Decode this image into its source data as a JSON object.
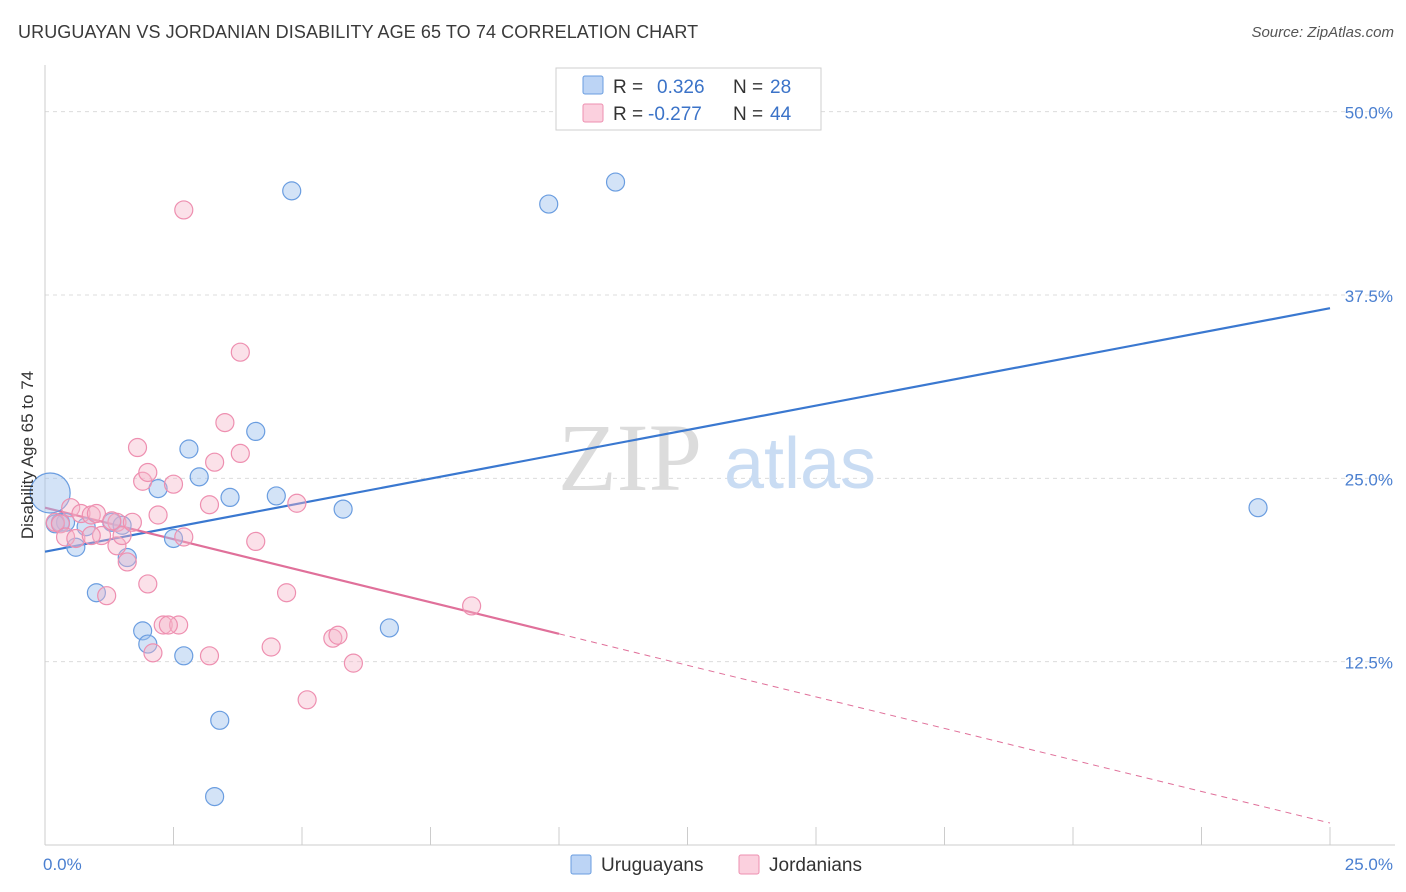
{
  "header": {
    "title": "URUGUAYAN VS JORDANIAN DISABILITY AGE 65 TO 74 CORRELATION CHART",
    "source": "Source: ZipAtlas.com"
  },
  "watermark": {
    "zip": "ZIP",
    "atlas": "atlas"
  },
  "legend": {
    "rows": [
      {
        "r_label": "R =",
        "r_value": "0.326",
        "n_label": "N =",
        "n_value": "28",
        "color": "#9dc0ee"
      },
      {
        "r_label": "R =",
        "r_value": "-0.277",
        "n_label": "N =",
        "n_value": "44",
        "color": "#f4b3c8"
      }
    ]
  },
  "bottom_legend": [
    "Uruguayans",
    "Jordanians"
  ],
  "chart_data": {
    "type": "scatter",
    "title": "URUGUAYAN VS JORDANIAN DISABILITY AGE 65 TO 74 CORRELATION CHART",
    "xlabel": "",
    "ylabel": "Disability Age 65 to 74",
    "xlim": [
      0,
      25
    ],
    "ylim": [
      0,
      52.5
    ],
    "x_tick_labels": [
      "0.0%",
      "25.0%"
    ],
    "y_ticks": [
      12.5,
      25.0,
      37.5,
      50.0
    ],
    "y_tick_labels": [
      "12.5%",
      "25.0%",
      "37.5%",
      "50.0%"
    ],
    "grid": true,
    "colors": {
      "uruguayans": "#6a9de0",
      "jordanians": "#ee8fb0",
      "uru_line": "#3a78d0",
      "jor_line": "#e0709a"
    },
    "series": [
      {
        "name": "Uruguayans",
        "trend": {
          "x0": 0,
          "y0": 20.0,
          "x1": 25,
          "y1": 36.6
        },
        "points": [
          [
            0.1,
            24.0
          ],
          [
            0.3,
            22.0
          ],
          [
            0.4,
            22.0
          ],
          [
            0.6,
            20.3
          ],
          [
            0.8,
            21.7
          ],
          [
            1.0,
            17.2
          ],
          [
            1.3,
            22.0
          ],
          [
            1.5,
            21.8
          ],
          [
            1.6,
            19.6
          ],
          [
            1.9,
            14.6
          ],
          [
            2.0,
            13.7
          ],
          [
            2.2,
            24.3
          ],
          [
            2.5,
            20.9
          ],
          [
            2.7,
            12.9
          ],
          [
            2.8,
            27.0
          ],
          [
            3.0,
            25.1
          ],
          [
            3.4,
            8.5
          ],
          [
            3.3,
            3.3
          ],
          [
            3.6,
            23.7
          ],
          [
            4.1,
            28.2
          ],
          [
            4.5,
            23.8
          ],
          [
            4.8,
            44.6
          ],
          [
            5.8,
            22.9
          ],
          [
            6.7,
            14.8
          ],
          [
            9.8,
            43.7
          ],
          [
            11.1,
            45.2
          ],
          [
            23.6,
            23.0
          ],
          [
            0.2,
            21.9
          ]
        ]
      },
      {
        "name": "Jordanians",
        "trend": {
          "x0": 0,
          "y0": 23.0,
          "x1": 10.0,
          "y1": 14.4,
          "dash_x1": 25,
          "dash_y1": 1.5
        },
        "points": [
          [
            0.2,
            22.0
          ],
          [
            0.3,
            21.9
          ],
          [
            0.4,
            21.0
          ],
          [
            0.5,
            23.0
          ],
          [
            0.6,
            20.9
          ],
          [
            0.7,
            22.6
          ],
          [
            0.9,
            22.5
          ],
          [
            1.0,
            22.6
          ],
          [
            1.1,
            21.1
          ],
          [
            1.2,
            17.0
          ],
          [
            1.4,
            22.0
          ],
          [
            1.4,
            20.4
          ],
          [
            1.5,
            21.1
          ],
          [
            1.6,
            19.3
          ],
          [
            1.8,
            27.1
          ],
          [
            1.9,
            24.8
          ],
          [
            2.0,
            25.4
          ],
          [
            2.0,
            17.8
          ],
          [
            2.3,
            15.0
          ],
          [
            2.6,
            15.0
          ],
          [
            2.2,
            22.5
          ],
          [
            2.1,
            13.1
          ],
          [
            2.5,
            24.6
          ],
          [
            2.7,
            21.0
          ],
          [
            2.7,
            43.3
          ],
          [
            3.2,
            23.2
          ],
          [
            3.2,
            12.9
          ],
          [
            3.3,
            26.1
          ],
          [
            3.5,
            28.8
          ],
          [
            3.8,
            33.6
          ],
          [
            3.8,
            26.7
          ],
          [
            4.1,
            20.7
          ],
          [
            4.4,
            13.5
          ],
          [
            4.7,
            17.2
          ],
          [
            4.9,
            23.3
          ],
          [
            5.1,
            9.9
          ],
          [
            5.6,
            14.1
          ],
          [
            5.7,
            14.3
          ],
          [
            6.0,
            12.4
          ],
          [
            8.3,
            16.3
          ],
          [
            2.4,
            15.0
          ],
          [
            1.3,
            22.1
          ],
          [
            0.9,
            21.1
          ],
          [
            1.7,
            22.0
          ]
        ]
      }
    ]
  }
}
